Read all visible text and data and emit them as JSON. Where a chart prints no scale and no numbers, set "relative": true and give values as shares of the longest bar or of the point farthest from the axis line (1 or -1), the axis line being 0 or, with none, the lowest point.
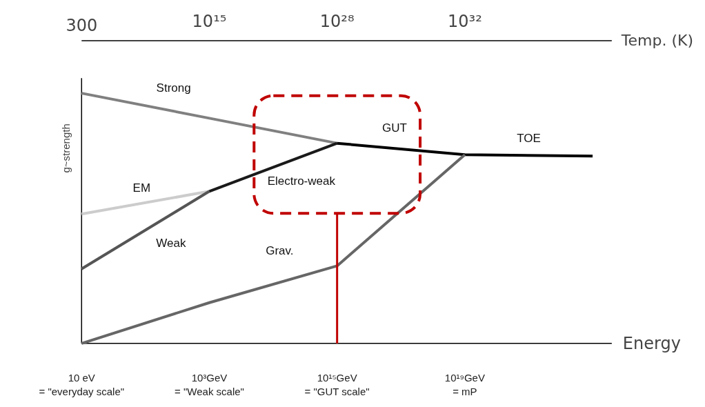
{
  "chart_data": {
    "type": "line",
    "relative": true,
    "xlabel": "Energy",
    "ylabel": "g~strength",
    "categories": [
      "10 eV\n= \"everyday scale\"",
      "10³GeV\n= \"Weak scale\"",
      "10¹⁵GeV\n= \"GUT scale\"",
      "10¹⁹GeV\n= mP",
      null
    ],
    "series": [
      {
        "name": "Strong",
        "color": "#808080",
        "values": [
          1.0,
          0.9,
          0.8,
          null,
          null
        ]
      },
      {
        "name": "EM",
        "color": "#cccccc",
        "values": [
          0.517,
          0.608,
          null,
          null,
          null
        ]
      },
      {
        "name": "Weak",
        "color": "#555555",
        "values": [
          0.298,
          0.608,
          null,
          null,
          null
        ]
      },
      {
        "name": "Electro-weak",
        "color": "#1a1a1a",
        "values": [
          null,
          0.608,
          0.8,
          null,
          null
        ]
      },
      {
        "name": "GUT",
        "color": "#000000",
        "values": [
          null,
          null,
          0.8,
          0.754,
          0.749
        ]
      },
      {
        "name": "Grav.",
        "color": "#666666",
        "values": [
          0,
          0.163,
          0.31,
          0.754,
          null
        ]
      }
    ],
    "ref_lines": [
      {
        "axis": "x",
        "value": "10¹⁵GeV\n= \"GUT scale\"",
        "color": "#c00000"
      }
    ],
    "annotations": [
      "300",
      "10¹⁵",
      "10²⁸",
      "10³²",
      "Temp. (K)",
      "TOE"
    ],
    "grid": false,
    "line_style": "solid"
  }
}
